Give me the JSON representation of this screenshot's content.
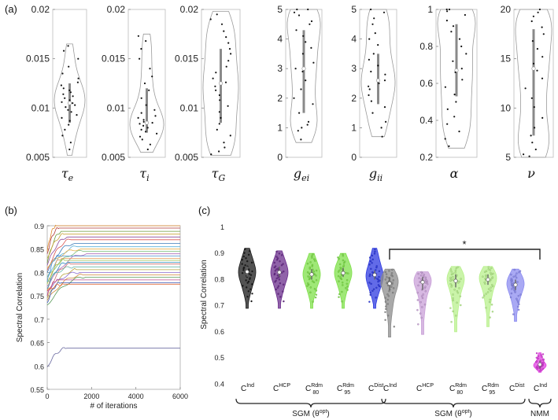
{
  "panels": {
    "a": "(a)",
    "b": "(b)",
    "c": "(c)"
  },
  "chart_data": [
    {
      "type": "violin",
      "panel": "(a)",
      "title": "",
      "parameters": [
        {
          "name": "tau_e",
          "symbol": "τ",
          "subscript": "e",
          "ylim": [
            0.005,
            0.02
          ],
          "yticks": [
            "0.005",
            "0.01",
            "0.015",
            "0.02"
          ],
          "median": 0.0105,
          "iqr": [
            0.0085,
            0.0125
          ],
          "range": [
            0.0052,
            0.0165
          ],
          "values": [
            0.0058,
            0.0065,
            0.0072,
            0.0078,
            0.0083,
            0.0087,
            0.009,
            0.0093,
            0.0096,
            0.0098,
            0.0101,
            0.0103,
            0.0105,
            0.0106,
            0.0108,
            0.011,
            0.0112,
            0.0114,
            0.0116,
            0.0118,
            0.012,
            0.0123,
            0.0126,
            0.013,
            0.0135,
            0.0142,
            0.015,
            0.0158,
            0.0163
          ]
        },
        {
          "name": "tau_i",
          "symbol": "τ",
          "subscript": "i",
          "ylim": [
            0.005,
            0.02
          ],
          "yticks": [
            "0.005",
            "0.01",
            "0.015",
            "0.02"
          ],
          "median": 0.0085,
          "iqr": [
            0.0075,
            0.012
          ],
          "range": [
            0.0055,
            0.0175
          ],
          "values": [
            0.0058,
            0.0063,
            0.0068,
            0.0071,
            0.0074,
            0.0076,
            0.0078,
            0.008,
            0.0082,
            0.0084,
            0.0085,
            0.0086,
            0.0088,
            0.009,
            0.0092,
            0.0095,
            0.0098,
            0.0103,
            0.011,
            0.0118,
            0.0125,
            0.0132,
            0.014,
            0.015,
            0.016,
            0.0168,
            0.0173
          ]
        },
        {
          "name": "tau_G",
          "symbol": "τ",
          "subscript": "G",
          "ylim": [
            0.005,
            0.02
          ],
          "yticks": [
            "0.005",
            "0.01",
            "0.015",
            "0.02"
          ],
          "median": 0.0125,
          "iqr": [
            0.0085,
            0.016
          ],
          "range": [
            0.0052,
            0.0198
          ],
          "values": [
            0.0053,
            0.0056,
            0.006,
            0.0065,
            0.0072,
            0.0078,
            0.0084,
            0.009,
            0.0096,
            0.0102,
            0.0108,
            0.0113,
            0.0118,
            0.0122,
            0.0126,
            0.013,
            0.0136,
            0.0142,
            0.0148,
            0.0155,
            0.016,
            0.0166,
            0.0172,
            0.0178,
            0.0185,
            0.019,
            0.0195
          ]
        },
        {
          "name": "g_ei",
          "symbol": "g",
          "subscript": "ei",
          "ylim": [
            0,
            5
          ],
          "yticks": [
            "0",
            "1",
            "2",
            "3",
            "4",
            "5"
          ],
          "median": 3.0,
          "iqr": [
            1.5,
            4.3
          ],
          "range": [
            0.5,
            5.0
          ],
          "values": [
            0.6,
            0.9,
            1.0,
            1.1,
            1.2,
            1.5,
            1.8,
            2.0,
            2.3,
            2.6,
            2.9,
            3.0,
            3.2,
            3.5,
            3.7,
            3.9,
            4.1,
            4.3,
            4.5,
            4.6,
            4.8,
            4.9,
            5.0,
            5.0
          ]
        },
        {
          "name": "g_ii",
          "symbol": "g",
          "subscript": "ii",
          "ylim": [
            0,
            5
          ],
          "yticks": [
            "0",
            "1",
            "2",
            "3",
            "4",
            "5"
          ],
          "median": 2.6,
          "iqr": [
            1.8,
            3.5
          ],
          "range": [
            0.7,
            5.0
          ],
          "values": [
            0.7,
            1.0,
            1.2,
            1.5,
            1.7,
            1.9,
            2.1,
            2.3,
            2.4,
            2.5,
            2.6,
            2.8,
            2.9,
            3.1,
            3.3,
            3.5,
            3.8,
            4.0,
            4.2,
            4.5,
            4.7,
            4.9,
            5.0
          ]
        },
        {
          "name": "alpha",
          "symbol": "α",
          "subscript": "",
          "ylim": [
            0.2,
            1
          ],
          "yticks": [
            "0.2",
            "0.4",
            "0.6",
            "0.8",
            "1"
          ],
          "median": 0.67,
          "iqr": [
            0.53,
            0.92
          ],
          "range": [
            0.25,
            1.0
          ],
          "values": [
            0.26,
            0.3,
            0.34,
            0.38,
            0.42,
            0.46,
            0.5,
            0.54,
            0.58,
            0.62,
            0.66,
            0.68,
            0.72,
            0.76,
            0.8,
            0.84,
            0.88,
            0.91,
            0.94,
            0.97,
            0.99,
            1.0,
            1.0
          ]
        },
        {
          "name": "nu",
          "symbol": "ν",
          "subscript": "",
          "ylim": [
            5,
            20
          ],
          "yticks": [
            "5",
            "10",
            "15",
            "20"
          ],
          "median": 14,
          "iqr": [
            7.2,
            18
          ],
          "range": [
            5.0,
            20.0
          ],
          "values": [
            5.1,
            5.3,
            5.8,
            6.5,
            7.2,
            8.0,
            9.0,
            10.1,
            11.0,
            12.0,
            13.0,
            13.8,
            14.5,
            15.2,
            16.0,
            16.8,
            17.5,
            18.2,
            18.8,
            19.3,
            19.7,
            20.0
          ]
        }
      ]
    },
    {
      "type": "line",
      "panel": "(b)",
      "title": "",
      "xlabel": "# of iterations",
      "ylabel": "Spectral Correlation",
      "xlim": [
        0,
        6000
      ],
      "ylim": [
        0.55,
        0.9
      ],
      "xticks": [
        "0",
        "2000",
        "4000",
        "6000"
      ],
      "yticks": [
        "0.55",
        "0.6",
        "0.65",
        "0.7",
        "0.75",
        "0.8",
        "0.85",
        "0.9"
      ],
      "series": [
        {
          "start": 0.845,
          "final": 0.9,
          "color": "#e08a2c"
        },
        {
          "start": 0.84,
          "final": 0.895,
          "color": "#b03a3a"
        },
        {
          "start": 0.82,
          "final": 0.888,
          "color": "#6a9b3a"
        },
        {
          "start": 0.83,
          "final": 0.882,
          "color": "#c8a23a"
        },
        {
          "start": 0.815,
          "final": 0.876,
          "color": "#8c4a9c"
        },
        {
          "start": 0.805,
          "final": 0.87,
          "color": "#d9534f"
        },
        {
          "start": 0.8,
          "final": 0.862,
          "color": "#3a7ab8"
        },
        {
          "start": 0.79,
          "final": 0.855,
          "color": "#5bb0d8"
        },
        {
          "start": 0.81,
          "final": 0.85,
          "color": "#e7b04a"
        },
        {
          "start": 0.79,
          "final": 0.845,
          "color": "#7fbf7f"
        },
        {
          "start": 0.77,
          "final": 0.84,
          "color": "#a86ab8"
        },
        {
          "start": 0.78,
          "final": 0.835,
          "color": "#4c8fd0"
        },
        {
          "start": 0.76,
          "final": 0.83,
          "color": "#e59a5a"
        },
        {
          "start": 0.775,
          "final": 0.826,
          "color": "#9fbf4a"
        },
        {
          "start": 0.765,
          "final": 0.822,
          "color": "#2e8fbf"
        },
        {
          "start": 0.75,
          "final": 0.818,
          "color": "#c86a6a"
        },
        {
          "start": 0.78,
          "final": 0.812,
          "color": "#6ab8a8"
        },
        {
          "start": 0.745,
          "final": 0.806,
          "color": "#b8a23a"
        },
        {
          "start": 0.76,
          "final": 0.8,
          "color": "#8a6ad0"
        },
        {
          "start": 0.74,
          "final": 0.795,
          "color": "#d08a3a"
        },
        {
          "start": 0.73,
          "final": 0.79,
          "color": "#5a9a5a"
        },
        {
          "start": 0.75,
          "final": 0.784,
          "color": "#c04a8a"
        },
        {
          "start": 0.735,
          "final": 0.778,
          "color": "#3a5ab8"
        },
        {
          "start": 0.76,
          "final": 0.775,
          "color": "#e06a3a"
        },
        {
          "start": 0.598,
          "final": 0.638,
          "color": "#6a6aa0"
        }
      ]
    },
    {
      "type": "violin",
      "panel": "(c)",
      "ylabel": "Spectral Correlation",
      "ylim": [
        0.35,
        1
      ],
      "yticks": [
        "0.4",
        "0.5",
        "0.6",
        "0.7",
        "0.8",
        "0.9",
        "1"
      ],
      "groups": [
        {
          "label": "SGM (θopt)",
          "label_main": "SGM (θ",
          "label_sup": "opt",
          "label_end": ")",
          "categories": [
            0,
            1,
            2,
            3,
            4
          ]
        },
        {
          "label": "SGM (θopt)",
          "label_main": "SGM (θ",
          "label_sup": "opt",
          "label_end": ")",
          "categories": [
            5,
            6,
            7,
            8,
            9
          ]
        },
        {
          "label": "NMM",
          "label_main": "NMM",
          "label_sup": "",
          "label_end": "",
          "categories": [
            10
          ]
        }
      ],
      "significance": "*",
      "categories": [
        {
          "base": "C",
          "sup": "Ind",
          "sub": "",
          "color": "#1a1a1a",
          "median": 0.83,
          "iqr": [
            0.81,
            0.85
          ],
          "range": [
            0.69,
            0.92
          ]
        },
        {
          "base": "C",
          "sup": "HCP",
          "sub": "",
          "color": "#6b2d8c",
          "median": 0.828,
          "iqr": [
            0.81,
            0.85
          ],
          "range": [
            0.69,
            0.91
          ]
        },
        {
          "base": "C",
          "sup": "Rdm",
          "sub": "80",
          "color": "#7fe04a",
          "median": 0.82,
          "iqr": [
            0.8,
            0.84
          ],
          "range": [
            0.69,
            0.9
          ]
        },
        {
          "base": "C",
          "sup": "Rdm",
          "sub": "95",
          "color": "#7fe04a",
          "median": 0.825,
          "iqr": [
            0.81,
            0.845
          ],
          "range": [
            0.69,
            0.9
          ]
        },
        {
          "base": "C",
          "sup": "Dist",
          "sub": "",
          "color": "#2e3ae0",
          "median": 0.818,
          "iqr": [
            0.8,
            0.835
          ],
          "range": [
            0.69,
            0.92
          ]
        },
        {
          "base": "C",
          "sup": "Ind",
          "sub": "",
          "color": "#8c8c8c",
          "median": 0.785,
          "iqr": [
            0.76,
            0.81
          ],
          "range": [
            0.58,
            0.84
          ]
        },
        {
          "base": "C",
          "sup": "HCP",
          "sub": "",
          "color": "#c9a0d8",
          "median": 0.79,
          "iqr": [
            0.76,
            0.81
          ],
          "range": [
            0.59,
            0.83
          ]
        },
        {
          "base": "C",
          "sup": "Rdm",
          "sub": "80",
          "color": "#b8f08c",
          "median": 0.795,
          "iqr": [
            0.77,
            0.82
          ],
          "range": [
            0.6,
            0.85
          ]
        },
        {
          "base": "C",
          "sup": "Rdm",
          "sub": "95",
          "color": "#b8f08c",
          "median": 0.8,
          "iqr": [
            0.78,
            0.82
          ],
          "range": [
            0.62,
            0.85
          ]
        },
        {
          "base": "C",
          "sup": "Dist",
          "sub": "",
          "color": "#8c8cf0",
          "median": 0.78,
          "iqr": [
            0.76,
            0.8
          ],
          "range": [
            0.64,
            0.84
          ]
        },
        {
          "base": "C",
          "sup": "Ind",
          "sub": "",
          "color": "#e040e0",
          "median": 0.475,
          "iqr": [
            0.46,
            0.49
          ],
          "range": [
            0.445,
            0.52
          ]
        }
      ]
    }
  ]
}
